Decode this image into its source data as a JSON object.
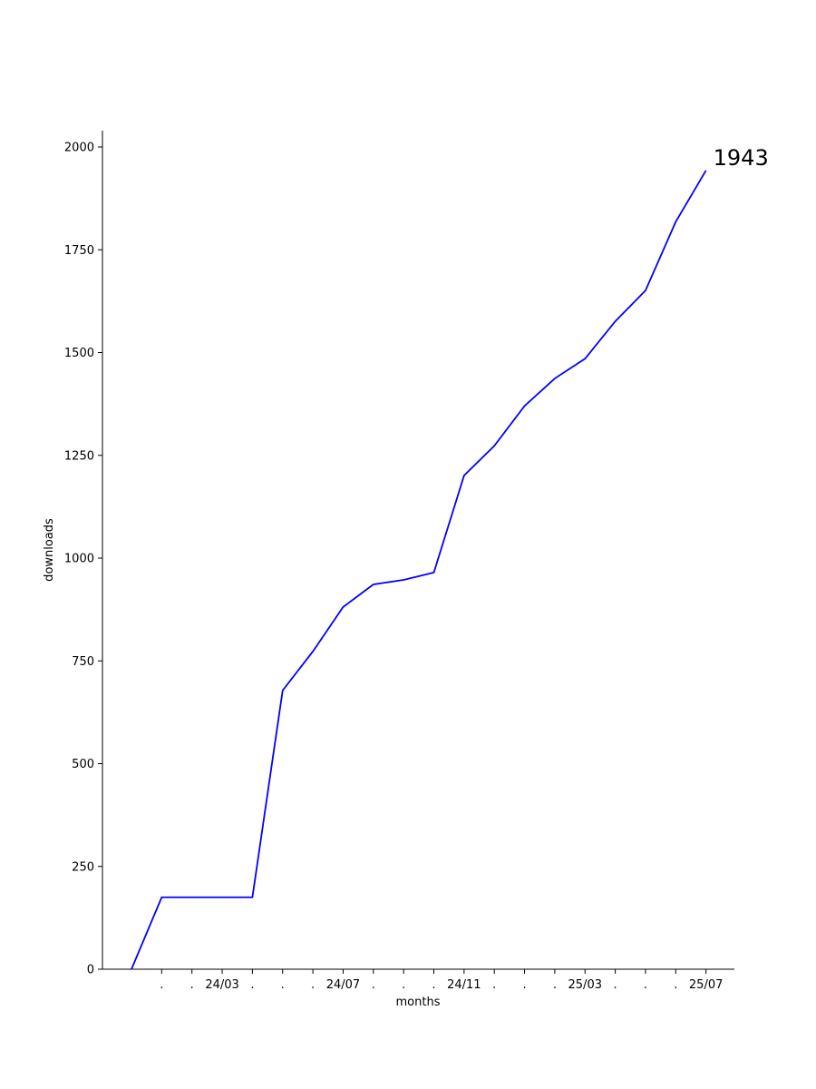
{
  "chart_data": {
    "type": "line",
    "xlabel": "months",
    "ylabel": "downloads",
    "ylim": [
      0,
      2040
    ],
    "grid": false,
    "x_ticks": [
      ".",
      ".",
      "24/03",
      ".",
      ".",
      ".",
      "24/07",
      ".",
      ".",
      ".",
      "24/11",
      ".",
      ".",
      ".",
      "25/03",
      ".",
      ".",
      ".",
      "25/07"
    ],
    "y_ticks": [
      0,
      250,
      500,
      750,
      1000,
      1250,
      1500,
      1750,
      2000
    ],
    "series": [
      {
        "color": "#0000ff",
        "values": [
          0,
          175,
          175,
          175,
          175,
          678,
          773,
          881,
          936,
          947,
          965,
          1201,
          1273,
          1370,
          1437,
          1485,
          1576,
          1651,
          1818,
          1943
        ]
      }
    ],
    "end_label": "1943"
  }
}
